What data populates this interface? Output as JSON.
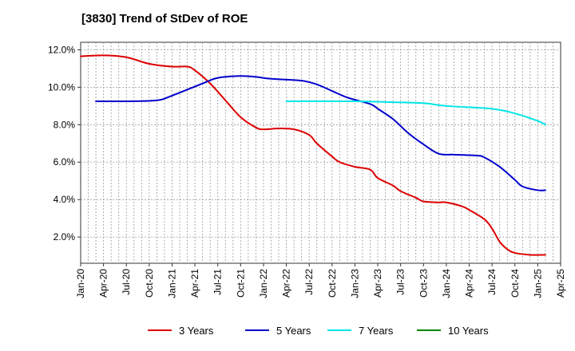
{
  "chart_data": {
    "type": "line",
    "title": "[3830]  Trend of StDev of ROE",
    "xlabel": "",
    "ylabel": "",
    "x_ticks": [
      "Jan-20",
      "Apr-20",
      "Jul-20",
      "Oct-20",
      "Jan-21",
      "Apr-21",
      "Jul-21",
      "Oct-21",
      "Jan-22",
      "Apr-22",
      "Jul-22",
      "Oct-22",
      "Jan-23",
      "Apr-23",
      "Jul-23",
      "Oct-23",
      "Jan-24",
      "Apr-24",
      "Jul-24",
      "Oct-24",
      "Jan-25",
      "Apr-25"
    ],
    "y_ticks": [
      "2.0%",
      "4.0%",
      "6.0%",
      "8.0%",
      "10.0%",
      "12.0%"
    ],
    "y_tick_values": [
      2,
      4,
      6,
      8,
      10,
      12
    ],
    "xlim": [
      "Jan-20",
      "Apr-25"
    ],
    "ylim": [
      0.6,
      12.4
    ],
    "grid": true,
    "legend_position": "bottom",
    "series": [
      {
        "name": "3 Years",
        "color": "#dd0000",
        "points": [
          [
            "Jan-20",
            11.65
          ],
          [
            "Apr-20",
            11.7
          ],
          [
            "Jul-20",
            11.6
          ],
          [
            "Oct-20",
            11.25
          ],
          [
            "Jan-21",
            11.1
          ],
          [
            "Mar-21",
            11.1
          ],
          [
            "Apr-21",
            10.9
          ],
          [
            "Jun-21",
            10.2
          ],
          [
            "Aug-21",
            9.3
          ],
          [
            "Oct-21",
            8.4
          ],
          [
            "Dec-21",
            7.85
          ],
          [
            "Jan-22",
            7.75
          ],
          [
            "Mar-22",
            7.8
          ],
          [
            "May-22",
            7.75
          ],
          [
            "Jul-22",
            7.45
          ],
          [
            "Aug-22",
            7.0
          ],
          [
            "Oct-22",
            6.3
          ],
          [
            "Nov-22",
            6.0
          ],
          [
            "Jan-23",
            5.75
          ],
          [
            "Mar-23",
            5.6
          ],
          [
            "Apr-23",
            5.15
          ],
          [
            "Jun-23",
            4.75
          ],
          [
            "Jul-23",
            4.45
          ],
          [
            "Sep-23",
            4.1
          ],
          [
            "Oct-23",
            3.9
          ],
          [
            "Dec-23",
            3.85
          ],
          [
            "Jan-24",
            3.85
          ],
          [
            "Mar-24",
            3.65
          ],
          [
            "Apr-24",
            3.45
          ],
          [
            "Jun-24",
            2.95
          ],
          [
            "Jul-24",
            2.45
          ],
          [
            "Aug-24",
            1.75
          ],
          [
            "Sep-24",
            1.35
          ],
          [
            "Oct-24",
            1.15
          ],
          [
            "Dec-24",
            1.05
          ],
          [
            "Feb-25",
            1.05
          ]
        ]
      },
      {
        "name": "5 Years",
        "color": "#0000cc",
        "points": [
          [
            "Mar-20",
            9.25
          ],
          [
            "Jul-20",
            9.25
          ],
          [
            "Nov-20",
            9.3
          ],
          [
            "Jan-21",
            9.55
          ],
          [
            "May-21",
            10.2
          ],
          [
            "Jul-21",
            10.5
          ],
          [
            "Oct-21",
            10.6
          ],
          [
            "Dec-21",
            10.55
          ],
          [
            "Feb-22",
            10.45
          ],
          [
            "Jun-22",
            10.35
          ],
          [
            "Aug-22",
            10.15
          ],
          [
            "Oct-22",
            9.8
          ],
          [
            "Dec-22",
            9.45
          ],
          [
            "Mar-23",
            9.1
          ],
          [
            "Apr-23",
            8.85
          ],
          [
            "Jun-23",
            8.3
          ],
          [
            "Aug-23",
            7.55
          ],
          [
            "Oct-23",
            6.95
          ],
          [
            "Dec-23",
            6.45
          ],
          [
            "Feb-24",
            6.4
          ],
          [
            "May-24",
            6.35
          ],
          [
            "Jun-24",
            6.25
          ],
          [
            "Aug-24",
            5.75
          ],
          [
            "Oct-24",
            5.05
          ],
          [
            "Nov-24",
            4.7
          ],
          [
            "Jan-25",
            4.5
          ],
          [
            "Feb-25",
            4.5
          ]
        ]
      },
      {
        "name": "7 Years",
        "color": "#00e5e5",
        "points": [
          [
            "Apr-22",
            9.25
          ],
          [
            "Jan-23",
            9.25
          ],
          [
            "Jun-23",
            9.2
          ],
          [
            "Oct-23",
            9.15
          ],
          [
            "Jan-24",
            9.0
          ],
          [
            "Jul-24",
            8.85
          ],
          [
            "Oct-24",
            8.6
          ],
          [
            "Jan-25",
            8.2
          ],
          [
            "Feb-25",
            8.0
          ]
        ]
      },
      {
        "name": "10 Years",
        "color": "#008800",
        "points": []
      }
    ]
  }
}
